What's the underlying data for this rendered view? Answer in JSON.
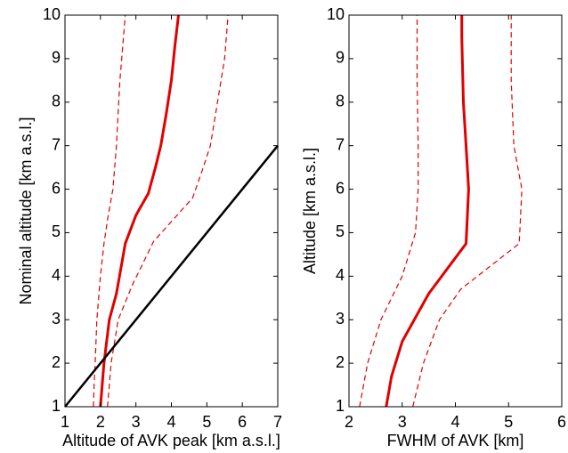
{
  "chart_data": [
    {
      "type": "line",
      "xlabel": "Altitude of AVK peak [km a.s.l.]",
      "ylabel": "Nominal altitude [km a.s.l.]",
      "xlim": [
        1,
        7
      ],
      "ylim": [
        1,
        10
      ],
      "xticks": [
        "1",
        "2",
        "3",
        "4",
        "5",
        "6",
        "7"
      ],
      "yticks": [
        "1",
        "2",
        "3",
        "4",
        "5",
        "6",
        "7",
        "8",
        "9",
        "10"
      ],
      "grid": false,
      "series": [
        {
          "style": "solid",
          "color": "#e00000",
          "x": [
            2.0,
            2.05,
            2.1,
            2.25,
            2.45,
            2.7,
            3.0,
            3.35,
            3.55,
            3.7,
            3.85,
            4.0,
            4.1,
            4.2
          ],
          "y": [
            1.0,
            1.5,
            2.0,
            3.0,
            3.6,
            4.75,
            5.4,
            5.9,
            6.5,
            7.0,
            7.7,
            8.5,
            9.3,
            10.0
          ]
        },
        {
          "style": "dashed",
          "color": "#e00000",
          "x": [
            1.8,
            1.82,
            1.85,
            1.9,
            2.0,
            2.1,
            2.2,
            2.35,
            2.45,
            2.5,
            2.55,
            2.6,
            2.65,
            2.7
          ],
          "y": [
            1.0,
            1.5,
            2.0,
            3.0,
            4.0,
            4.75,
            5.3,
            6.0,
            7.0,
            7.8,
            8.5,
            9.0,
            9.5,
            10.0
          ]
        },
        {
          "style": "dashed",
          "color": "#e00000",
          "x": [
            2.2,
            2.25,
            2.3,
            2.5,
            2.9,
            3.5,
            4.6,
            4.9,
            5.1,
            5.3,
            5.5,
            5.6
          ],
          "y": [
            1.0,
            1.5,
            2.0,
            3.0,
            3.8,
            4.8,
            5.8,
            6.5,
            7.0,
            8.0,
            9.0,
            10.0
          ]
        },
        {
          "style": "solid",
          "color": "#000000",
          "x": [
            1,
            7
          ],
          "y": [
            1,
            7
          ]
        }
      ]
    },
    {
      "type": "line",
      "xlabel": "FWHM of AVK [km]",
      "ylabel": "Altitude [km a.s.l.]",
      "xlim": [
        2,
        6
      ],
      "ylim": [
        1,
        10
      ],
      "xticks": [
        "2",
        "3",
        "4",
        "5",
        "6"
      ],
      "yticks": [
        "1",
        "2",
        "3",
        "4",
        "5",
        "6",
        "7",
        "8",
        "9",
        "10"
      ],
      "grid": false,
      "series": [
        {
          "style": "solid",
          "color": "#e00000",
          "x": [
            2.7,
            2.8,
            3.0,
            3.5,
            4.2,
            4.25,
            4.2,
            4.15,
            4.13,
            4.12,
            4.12
          ],
          "y": [
            1.0,
            1.7,
            2.5,
            3.6,
            4.75,
            6.0,
            7.0,
            8.0,
            9.0,
            9.5,
            10.0
          ]
        },
        {
          "style": "dashed",
          "color": "#e00000",
          "x": [
            2.2,
            2.35,
            2.6,
            3.0,
            3.25,
            3.3,
            3.3,
            3.28,
            3.28
          ],
          "y": [
            1.0,
            2.0,
            3.0,
            4.0,
            5.0,
            6.0,
            7.0,
            8.5,
            10.0
          ]
        },
        {
          "style": "dashed",
          "color": "#e00000",
          "x": [
            3.2,
            3.4,
            3.7,
            4.1,
            5.2,
            5.25,
            5.1,
            5.05,
            5.05
          ],
          "y": [
            1.0,
            2.0,
            3.0,
            3.7,
            4.75,
            6.0,
            7.0,
            8.5,
            10.0
          ]
        }
      ]
    }
  ]
}
